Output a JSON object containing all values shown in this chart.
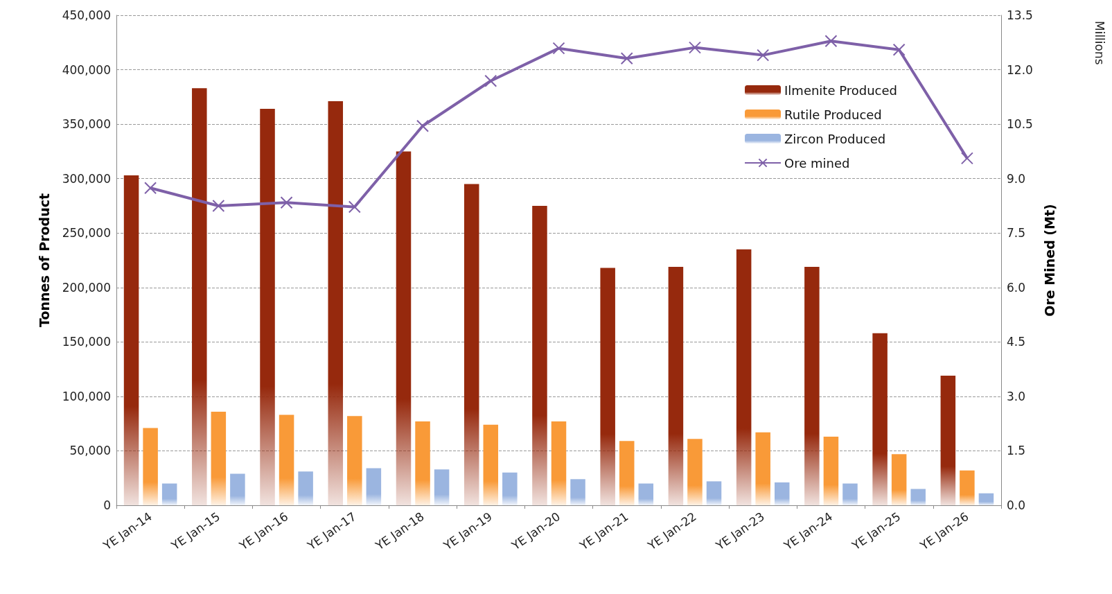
{
  "chart_data": {
    "type": "bar",
    "ylabel": "Tonnes of Product",
    "y2label": "Ore Mined (Mt)",
    "annotations": [
      "Millions"
    ],
    "categories": [
      "YE Jan-14",
      "YE Jan-15",
      "YE Jan-16",
      "YE Jan-17",
      "YE Jan-18",
      "YE Jan-19",
      "YE Jan-20",
      "YE Jan-21",
      "YE Jan-22",
      "YE Jan-23",
      "YE Jan-24",
      "YE Jan-25",
      "YE Jan-26"
    ],
    "series": [
      {
        "name": "Ilmenite Produced",
        "color": "#96290d",
        "values": [
          303000,
          383000,
          364000,
          371000,
          325000,
          295000,
          275000,
          218000,
          219000,
          235000,
          219000,
          158000,
          119000
        ]
      },
      {
        "name": "Rutile Produced",
        "color": "#f99a38",
        "values": [
          71000,
          86000,
          83000,
          82000,
          77000,
          74000,
          77000,
          59000,
          61000,
          67000,
          63000,
          47000,
          32000
        ]
      },
      {
        "name": "Zircon Produced",
        "color": "#9bb5e0",
        "values": [
          20000,
          29000,
          31000,
          34000,
          33000,
          30000,
          24000,
          20000,
          22000,
          21000,
          20000,
          15000,
          11000
        ]
      },
      {
        "name": "Ore mined",
        "type": "line",
        "axis": "y2",
        "color": "#7e60a8",
        "marker": "cross",
        "values": [
          8.74,
          8.25,
          8.34,
          8.22,
          10.45,
          11.69,
          12.59,
          12.31,
          12.61,
          12.4,
          12.79,
          12.55,
          9.56
        ]
      }
    ],
    "ylim": [
      0,
      450000
    ],
    "yticks": [
      {
        "value": 0,
        "label": "0"
      },
      {
        "value": 50000,
        "label": "50,000"
      },
      {
        "value": 100000,
        "label": "100,000"
      },
      {
        "value": 150000,
        "label": "150,000"
      },
      {
        "value": 200000,
        "label": "200,000"
      },
      {
        "value": 250000,
        "label": "250,000"
      },
      {
        "value": 300000,
        "label": "300,000"
      },
      {
        "value": 350000,
        "label": "350,000"
      },
      {
        "value": 400000,
        "label": "400,000"
      },
      {
        "value": 450000,
        "label": "450,000"
      }
    ],
    "y2lim": [
      0,
      13.5
    ],
    "y2ticks": [
      {
        "value": 0,
        "label": "0.0"
      },
      {
        "value": 1.5,
        "label": "1.5"
      },
      {
        "value": 3,
        "label": "3.0"
      },
      {
        "value": 4.5,
        "label": "4.5"
      },
      {
        "value": 6,
        "label": "6.0"
      },
      {
        "value": 7.5,
        "label": "7.5"
      },
      {
        "value": 9,
        "label": "9.0"
      },
      {
        "value": 10.5,
        "label": "10.5"
      },
      {
        "value": 12,
        "label": "12.0"
      },
      {
        "value": 13.5,
        "label": "13.5"
      }
    ],
    "grid": "y",
    "legend": "top right"
  }
}
